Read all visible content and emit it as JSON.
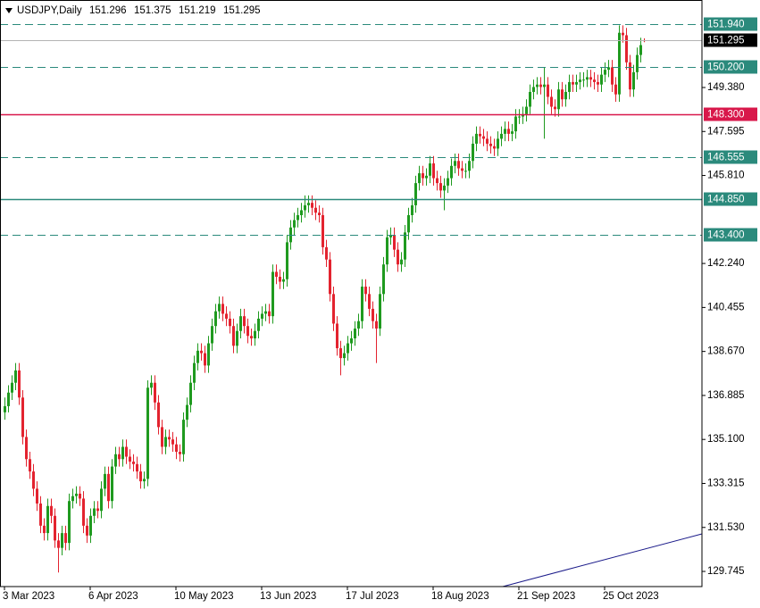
{
  "chart_data": {
    "type": "candlestick",
    "title": "USDJPY,Daily",
    "categories": [
      "3 Mar 2023",
      null,
      null,
      null,
      null,
      null,
      null,
      null,
      null,
      null,
      null,
      null,
      null,
      null,
      null,
      null,
      null,
      null,
      null,
      null,
      null,
      null,
      null,
      null,
      "6 Apr 2023",
      null,
      null,
      null,
      null,
      null,
      null,
      null,
      null,
      null,
      null,
      null,
      null,
      null,
      null,
      null,
      null,
      null,
      null,
      null,
      null,
      null,
      null,
      null,
      "10 May 2023",
      null,
      null,
      null,
      null,
      null,
      null,
      null,
      null,
      null,
      null,
      null,
      null,
      null,
      null,
      null,
      null,
      null,
      null,
      null,
      null,
      null,
      null,
      null,
      "13 Jun 2023",
      null,
      null,
      null,
      null,
      null,
      null,
      null,
      null,
      null,
      null,
      null,
      null,
      null,
      null,
      null,
      null,
      null,
      null,
      null,
      null,
      null,
      null,
      null,
      "17 Jul 2023",
      null,
      null,
      null,
      null,
      null,
      null,
      null,
      null,
      null,
      null,
      null,
      null,
      null,
      null,
      null,
      null,
      null,
      null,
      null,
      null,
      null,
      null,
      null,
      "18 Aug 2023",
      null,
      null,
      null,
      null,
      null,
      null,
      null,
      null,
      null,
      null,
      null,
      null,
      null,
      null,
      null,
      null,
      null,
      null,
      null,
      null,
      null,
      null,
      null,
      "21 Sep 2023",
      null,
      null,
      null,
      null,
      null,
      null,
      null,
      null,
      null,
      null,
      null,
      null,
      null,
      null,
      null,
      null,
      null,
      null,
      null,
      null,
      null,
      null,
      null,
      "25 Oct 2023",
      null,
      null,
      null,
      null,
      null,
      null,
      null,
      null,
      null,
      null,
      null
    ],
    "open": [
      136.2,
      136.45,
      137.0,
      137.4,
      137.9,
      136.8,
      135.2,
      134.3,
      133.8,
      133.1,
      132.5,
      131.6,
      131.3,
      132.4,
      132.0,
      131.0,
      130.7,
      131.3,
      130.9,
      132.6,
      132.8,
      132.9,
      132.7,
      131.6,
      131.2,
      132.0,
      132.3,
      132.2,
      133.1,
      133.7,
      132.6,
      134.0,
      134.5,
      134.3,
      134.8,
      134.4,
      134.2,
      134.1,
      133.8,
      133.4,
      133.5,
      137.2,
      137.4,
      136.6,
      135.6,
      134.8,
      135.2,
      135.1,
      134.9,
      134.6,
      134.5,
      135.9,
      136.5,
      137.4,
      138.2,
      138.7,
      138.6,
      138.1,
      139.0,
      139.7,
      140.3,
      140.6,
      140.2,
      140.0,
      139.7,
      138.9,
      139.5,
      140.1,
      139.7,
      139.3,
      139.2,
      139.5,
      140.0,
      140.2,
      140.3,
      140.1,
      141.9,
      141.7,
      141.5,
      141.6,
      143.1,
      143.7,
      144.0,
      144.2,
      144.4,
      144.6,
      144.7,
      144.5,
      144.3,
      144.2,
      142.9,
      142.4,
      141.0,
      139.8,
      138.8,
      138.4,
      138.6,
      139.0,
      139.2,
      139.6,
      139.9,
      141.3,
      141.0,
      140.4,
      139.9,
      139.6,
      141.0,
      142.2,
      143.3,
      143.4,
      142.8,
      142.2,
      142.4,
      143.5,
      144.2,
      144.6,
      145.5,
      145.9,
      145.7,
      145.8,
      146.3,
      145.7,
      145.5,
      145.2,
      145.4,
      145.7,
      146.2,
      146.4,
      146.1,
      146.0,
      146.0,
      146.4,
      147.1,
      147.5,
      147.4,
      147.3,
      147.1,
      147.0,
      146.9,
      147.3,
      147.5,
      147.7,
      147.5,
      147.6,
      148.2,
      148.2,
      148.3,
      148.6,
      149.2,
      149.4,
      149.5,
      149.4,
      149.5,
      149.0,
      148.6,
      148.5,
      149.3,
      148.9,
      149.2,
      149.6,
      149.5,
      149.6,
      149.7,
      149.7,
      149.8,
      149.7,
      149.6,
      149.5,
      149.9,
      150.1,
      150.2,
      149.5,
      149.1,
      151.6,
      151.5,
      150.4,
      149.3,
      150.0,
      150.7,
      151.296
    ],
    "high": [
      136.8,
      137.3,
      137.7,
      138.2,
      138.2,
      137.1,
      135.5,
      134.6,
      134.1,
      133.4,
      132.8,
      131.9,
      132.7,
      132.7,
      132.3,
      131.3,
      131.6,
      131.6,
      132.9,
      133.1,
      133.2,
      133.2,
      133.0,
      131.9,
      132.3,
      132.6,
      132.6,
      133.4,
      134.0,
      134.0,
      134.3,
      134.8,
      134.8,
      135.1,
      135.1,
      134.7,
      134.5,
      134.4,
      134.1,
      133.8,
      137.5,
      137.7,
      137.7,
      136.9,
      135.9,
      135.5,
      135.5,
      135.4,
      135.2,
      134.9,
      136.2,
      136.8,
      137.7,
      138.5,
      139.0,
      139.0,
      138.9,
      139.3,
      140.0,
      140.6,
      140.9,
      140.9,
      140.5,
      140.3,
      140.0,
      139.8,
      140.4,
      140.4,
      140.0,
      139.6,
      139.8,
      140.3,
      140.5,
      140.6,
      140.6,
      142.2,
      142.2,
      142.0,
      141.9,
      143.4,
      144.0,
      144.3,
      144.5,
      144.7,
      145.0,
      145.0,
      145.0,
      144.8,
      144.6,
      144.5,
      143.2,
      142.7,
      141.3,
      140.1,
      139.1,
      138.9,
      139.3,
      139.5,
      139.9,
      140.2,
      141.6,
      141.6,
      141.3,
      140.7,
      140.2,
      141.3,
      142.5,
      143.6,
      143.7,
      143.7,
      143.1,
      142.7,
      143.8,
      144.5,
      144.9,
      145.8,
      146.2,
      146.2,
      146.1,
      146.6,
      146.6,
      146.0,
      145.8,
      145.7,
      146.0,
      146.5,
      146.7,
      146.7,
      146.4,
      146.3,
      146.7,
      147.4,
      147.8,
      147.8,
      147.7,
      147.6,
      147.4,
      147.3,
      147.6,
      147.8,
      148.0,
      148.0,
      147.9,
      148.5,
      148.5,
      148.6,
      148.9,
      149.5,
      149.7,
      149.8,
      149.8,
      150.2,
      149.8,
      149.3,
      148.9,
      149.6,
      149.6,
      149.5,
      149.9,
      149.9,
      149.9,
      150.0,
      150.0,
      150.1,
      150.1,
      150.0,
      149.9,
      150.2,
      150.4,
      150.5,
      150.5,
      149.8,
      151.9,
      151.9,
      151.8,
      150.7,
      150.3,
      151.0,
      151.4,
      151.375
    ],
    "low": [
      135.9,
      136.2,
      136.7,
      137.1,
      136.5,
      134.9,
      134.0,
      133.5,
      132.8,
      132.2,
      131.3,
      131.0,
      131.0,
      131.7,
      130.7,
      129.7,
      130.4,
      130.6,
      130.6,
      132.3,
      132.5,
      132.4,
      131.3,
      130.9,
      130.9,
      131.7,
      131.9,
      131.9,
      132.8,
      132.3,
      132.3,
      133.7,
      134.0,
      134.0,
      134.1,
      133.9,
      133.8,
      133.5,
      133.1,
      133.1,
      133.2,
      136.9,
      136.3,
      135.3,
      134.5,
      134.5,
      134.8,
      134.6,
      134.3,
      134.2,
      134.2,
      135.6,
      136.2,
      137.1,
      137.9,
      138.3,
      137.8,
      137.8,
      138.7,
      139.4,
      140.0,
      139.9,
      139.7,
      139.4,
      138.6,
      138.6,
      139.2,
      139.4,
      139.0,
      138.9,
      138.9,
      139.2,
      139.7,
      139.9,
      139.8,
      139.8,
      141.4,
      141.2,
      141.2,
      141.3,
      142.8,
      143.4,
      143.7,
      143.9,
      144.1,
      144.3,
      144.2,
      144.0,
      143.9,
      142.6,
      142.1,
      140.7,
      139.5,
      138.5,
      137.7,
      138.1,
      138.3,
      138.7,
      138.9,
      139.3,
      139.6,
      140.7,
      140.1,
      139.6,
      138.2,
      139.3,
      140.7,
      141.9,
      143.0,
      142.5,
      141.9,
      141.9,
      142.1,
      143.2,
      143.9,
      144.3,
      145.2,
      145.4,
      145.4,
      145.5,
      145.4,
      145.2,
      144.9,
      144.4,
      145.1,
      145.4,
      145.9,
      145.8,
      145.7,
      145.7,
      145.7,
      146.1,
      146.8,
      147.1,
      147.0,
      146.8,
      146.7,
      146.6,
      146.6,
      147.0,
      147.2,
      147.2,
      147.2,
      147.3,
      147.9,
      147.9,
      148.0,
      148.3,
      148.9,
      149.1,
      149.1,
      147.3,
      148.7,
      148.3,
      148.2,
      148.2,
      148.6,
      148.6,
      148.9,
      149.2,
      149.2,
      149.3,
      149.4,
      149.4,
      149.4,
      149.3,
      149.2,
      149.2,
      149.6,
      149.8,
      149.2,
      148.8,
      148.8,
      151.2,
      150.1,
      149.0,
      149.0,
      149.7,
      150.4,
      151.219
    ],
    "close": [
      136.45,
      137.0,
      137.4,
      137.9,
      136.8,
      135.2,
      134.3,
      133.8,
      133.1,
      132.5,
      131.6,
      131.3,
      132.4,
      132.0,
      131.0,
      130.7,
      131.3,
      130.9,
      132.6,
      132.8,
      132.9,
      132.7,
      131.6,
      131.2,
      132.0,
      132.3,
      132.2,
      133.1,
      133.7,
      132.6,
      134.0,
      134.5,
      134.3,
      134.8,
      134.4,
      134.2,
      134.1,
      133.8,
      133.4,
      133.5,
      137.2,
      137.4,
      136.6,
      135.6,
      134.8,
      135.2,
      135.1,
      134.9,
      134.6,
      134.5,
      135.9,
      136.5,
      137.4,
      138.2,
      138.7,
      138.6,
      138.1,
      139.0,
      139.7,
      140.3,
      140.6,
      140.2,
      140.0,
      139.7,
      138.9,
      139.5,
      140.1,
      139.7,
      139.3,
      139.2,
      139.5,
      140.0,
      140.2,
      140.3,
      140.1,
      141.9,
      141.7,
      141.5,
      141.6,
      143.1,
      143.7,
      144.0,
      144.2,
      144.4,
      144.6,
      144.7,
      144.5,
      144.3,
      144.2,
      142.9,
      142.4,
      141.0,
      139.8,
      138.8,
      138.4,
      138.6,
      139.0,
      139.2,
      139.6,
      139.9,
      141.3,
      141.0,
      140.4,
      139.9,
      139.6,
      141.0,
      142.2,
      143.3,
      143.4,
      142.8,
      142.2,
      142.4,
      143.5,
      144.2,
      144.6,
      145.5,
      145.9,
      145.7,
      145.8,
      146.3,
      145.7,
      145.5,
      145.2,
      145.4,
      145.7,
      146.2,
      146.4,
      146.1,
      146.0,
      146.0,
      146.4,
      147.1,
      147.5,
      147.4,
      147.3,
      147.1,
      147.0,
      146.9,
      147.3,
      147.5,
      147.7,
      147.5,
      147.6,
      148.2,
      148.2,
      148.3,
      148.6,
      149.2,
      149.4,
      149.5,
      149.4,
      149.5,
      149.0,
      148.6,
      148.5,
      149.3,
      148.9,
      149.2,
      149.6,
      149.5,
      149.6,
      149.7,
      149.7,
      149.8,
      149.7,
      149.6,
      149.5,
      149.9,
      150.1,
      150.2,
      149.5,
      149.1,
      151.6,
      151.5,
      150.4,
      149.3,
      150.0,
      150.7,
      151.1,
      151.295
    ],
    "up_color": "#1f9a1f",
    "down_color": "#e3232f",
    "ylim": [
      129.13,
      152.93
    ],
    "yticks": [
      {
        "value": 129.745,
        "label": "129.745"
      },
      {
        "value": 131.53,
        "label": "131.530"
      },
      {
        "value": 133.315,
        "label": "133.315"
      },
      {
        "value": 135.1,
        "label": "135.100"
      },
      {
        "value": 136.885,
        "label": "136.885"
      },
      {
        "value": 138.67,
        "label": "138.670"
      },
      {
        "value": 140.455,
        "label": "140.455"
      },
      {
        "value": 142.24,
        "label": "142.240"
      },
      {
        "value": 145.81,
        "label": "145.810"
      },
      {
        "value": 147.595,
        "label": "147.595"
      },
      {
        "value": 149.38,
        "label": "149.380"
      }
    ],
    "levels": [
      {
        "value": 151.94,
        "label": "151.940",
        "style": "dashed",
        "color": "#2b8a7c"
      },
      {
        "value": 150.2,
        "label": "150.200",
        "style": "dashed",
        "color": "#2b8a7c"
      },
      {
        "value": 148.3,
        "label": "148.300",
        "style": "solid",
        "color": "#d8174a"
      },
      {
        "value": 146.555,
        "label": "146.555",
        "style": "dashed",
        "color": "#2b8a7c"
      },
      {
        "value": 144.85,
        "label": "144.850",
        "style": "solid",
        "color": "#2b8a7c"
      },
      {
        "value": 143.4,
        "label": "143.400",
        "style": "dashed",
        "color": "#2b8a7c"
      }
    ],
    "price_line_color": "#b4b4b4"
  }
}
